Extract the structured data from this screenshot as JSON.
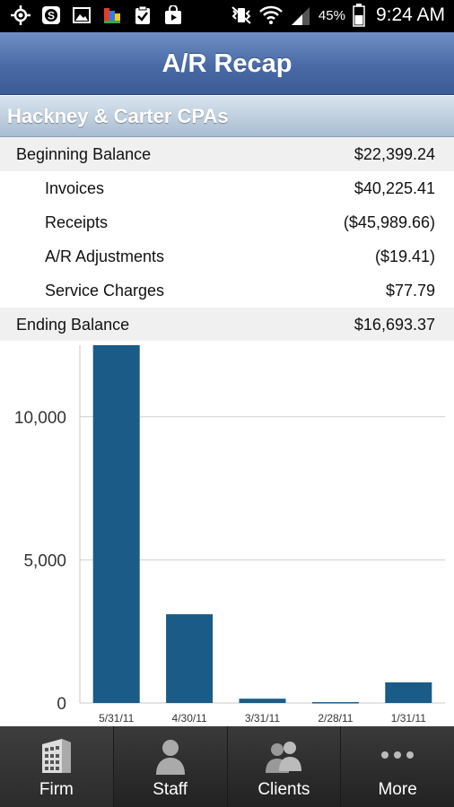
{
  "status_bar": {
    "battery": "45%",
    "time": "9:24 AM",
    "icons": [
      "gps-icon",
      "app-s-icon",
      "image-icon",
      "paint-icon",
      "clipboard-check-icon",
      "shopping-bag-icon"
    ]
  },
  "header": {
    "title": "A/R Recap"
  },
  "firm": {
    "name": "Hackney & Carter CPAs"
  },
  "recap": {
    "beginning": {
      "label": "Beginning Balance",
      "value": "$22,399.24"
    },
    "items": [
      {
        "label": "Invoices",
        "value": "$40,225.41"
      },
      {
        "label": "Receipts",
        "value": "($45,989.66)"
      },
      {
        "label": "A/R Adjustments",
        "value": "($19.41)"
      },
      {
        "label": "Service Charges",
        "value": "$77.79"
      }
    ],
    "ending": {
      "label": "Ending Balance",
      "value": "$16,693.37"
    }
  },
  "chart_data": {
    "type": "bar",
    "categories": [
      "5/31/11",
      "4/30/11",
      "3/31/11",
      "2/28/11",
      "1/31/11"
    ],
    "values": [
      12500,
      3100,
      150,
      30,
      720
    ],
    "ylim": [
      0,
      12500
    ],
    "yticks": [
      0,
      5000,
      10000
    ],
    "ytick_labels": [
      "0",
      "5,000",
      "10,000"
    ],
    "grid": true,
    "bar_color": "#1a5b87"
  },
  "nav": {
    "tabs": [
      {
        "label": "Firm",
        "icon": "building-icon",
        "active": true
      },
      {
        "label": "Staff",
        "icon": "person-icon",
        "active": false
      },
      {
        "label": "Clients",
        "icon": "people-icon",
        "active": false
      },
      {
        "label": "More",
        "icon": "more-dots-icon",
        "active": false
      }
    ]
  }
}
